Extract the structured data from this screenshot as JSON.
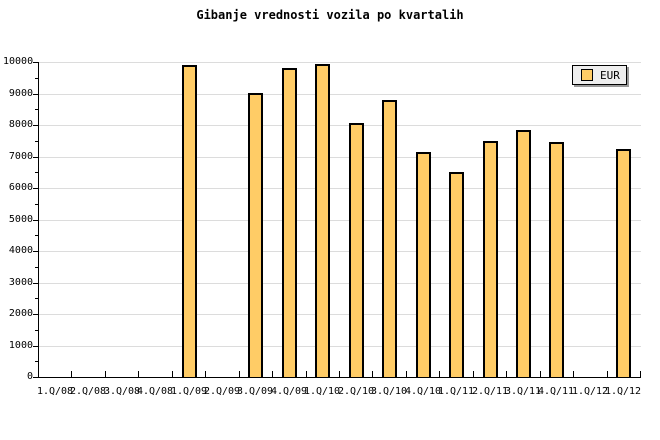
{
  "chart_data": {
    "type": "bar",
    "title": "Gibanje vrednosti vozila po kvartalih",
    "categories": [
      "1.Q/08",
      "2.Q/08",
      "3.Q/08",
      "4.Q/08",
      "1.Q/09",
      "2.Q/09",
      "3.Q/09",
      "4.Q/09",
      "1.Q/10",
      "2.Q/10",
      "3.Q/10",
      "4.Q/10",
      "1.Q/11",
      "2.Q/11",
      "3.Q/11",
      "4.Q/11",
      "1.Q/12",
      "1.Q/12"
    ],
    "series": [
      {
        "name": "EUR",
        "values": [
          null,
          null,
          null,
          null,
          9900,
          null,
          9000,
          9800,
          9930,
          8050,
          8800,
          7130,
          6520,
          7500,
          7850,
          7450,
          null,
          7250
        ]
      }
    ],
    "xlabel": "",
    "ylabel": "",
    "ylim": [
      0,
      10000
    ],
    "y_tick_step": 1000,
    "y_minor_tick_step": 500,
    "grid": "horizontal",
    "legend_position": "top-right",
    "colors": {
      "bar_fill": "#FFCC66",
      "bar_border": "#000000",
      "grid": "#DCDCDC",
      "axis": "#000000",
      "background": "#FFFFFF",
      "legend_bg": "#EEEEEE",
      "legend_shadow": "#999999",
      "text": "#000000"
    }
  }
}
